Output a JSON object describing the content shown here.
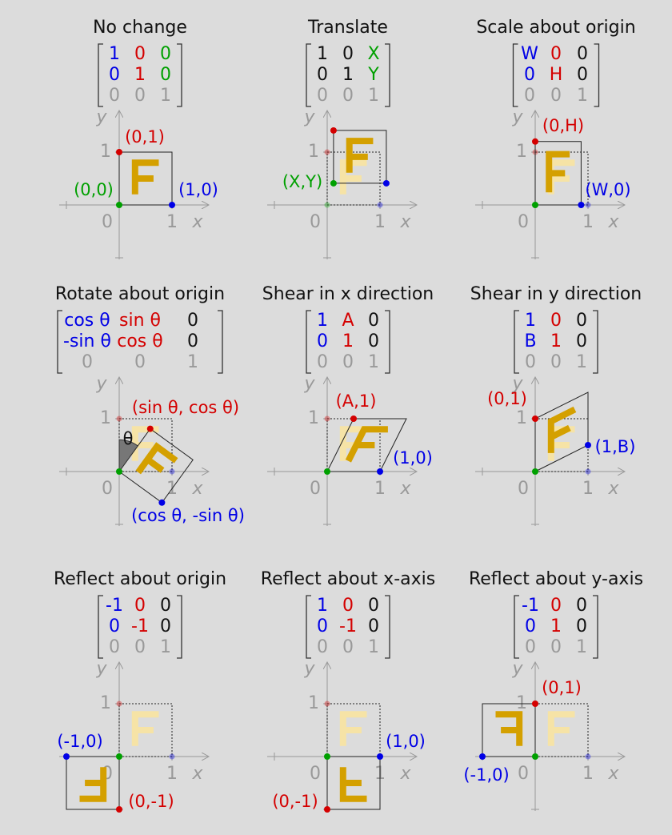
{
  "axis_labels": {
    "x": "x",
    "y": "y",
    "origin": "0",
    "unit": "1"
  },
  "panels": [
    {
      "title": "No change",
      "matrix": [
        [
          "1",
          "0",
          "0"
        ],
        [
          "0",
          "1",
          "0"
        ],
        [
          "0",
          "0",
          "1"
        ]
      ],
      "points": [
        "(0,1)",
        "(0,0)",
        "(1,0)"
      ]
    },
    {
      "title": "Translate",
      "matrix": [
        [
          "1",
          "0",
          "X"
        ],
        [
          "0",
          "1",
          "Y"
        ],
        [
          "0",
          "0",
          "1"
        ]
      ],
      "points": [
        "(X,Y)"
      ]
    },
    {
      "title": "Scale about origin",
      "matrix": [
        [
          "W",
          "0",
          "0"
        ],
        [
          "0",
          "H",
          "0"
        ],
        [
          "0",
          "0",
          "1"
        ]
      ],
      "points": [
        "(0,H)",
        "(W,0)"
      ]
    },
    {
      "title": "Rotate about origin",
      "matrix": [
        [
          "cos θ",
          "sin θ",
          "0"
        ],
        [
          "-sin θ",
          "cos θ",
          "0"
        ],
        [
          "0",
          "0",
          "1"
        ]
      ],
      "points": [
        "(sin θ, cos θ)",
        "(cos θ, -sin θ)",
        "θ"
      ]
    },
    {
      "title": "Shear in x direction",
      "matrix": [
        [
          "1",
          "A",
          "0"
        ],
        [
          "0",
          "1",
          "0"
        ],
        [
          "0",
          "0",
          "1"
        ]
      ],
      "points": [
        "(A,1)",
        "(1,0)"
      ]
    },
    {
      "title": "Shear in y direction",
      "matrix": [
        [
          "1",
          "0",
          "0"
        ],
        [
          "B",
          "1",
          "0"
        ],
        [
          "0",
          "0",
          "1"
        ]
      ],
      "points": [
        "(0,1)",
        "(1,B)"
      ]
    },
    {
      "title": "Reflect about origin",
      "matrix": [
        [
          "-1",
          "0",
          "0"
        ],
        [
          "0",
          "-1",
          "0"
        ],
        [
          "0",
          "0",
          "1"
        ]
      ],
      "points": [
        "(-1,0)",
        "(0,-1)"
      ]
    },
    {
      "title": "Reflect about x-axis",
      "matrix": [
        [
          "1",
          "0",
          "0"
        ],
        [
          "0",
          "-1",
          "0"
        ],
        [
          "0",
          "0",
          "1"
        ]
      ],
      "points": [
        "(1,0)",
        "(0,-1)"
      ]
    },
    {
      "title": "Reflect about y-axis",
      "matrix": [
        [
          "-1",
          "0",
          "0"
        ],
        [
          "0",
          "1",
          "0"
        ],
        [
          "0",
          "0",
          "1"
        ]
      ],
      "points": [
        "(0,1)",
        "(-1,0)"
      ]
    }
  ]
}
